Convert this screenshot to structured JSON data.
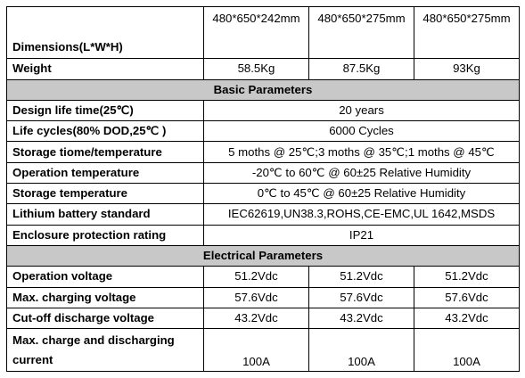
{
  "dimensions": {
    "label": "Dimensions(L*W*H)",
    "values": [
      "480*650*242mm",
      "480*650*275mm",
      "480*650*275mm"
    ]
  },
  "weight": {
    "label": "Weight",
    "values": [
      "58.5Kg",
      "87.5Kg",
      "93Kg"
    ]
  },
  "basic": {
    "header": "Basic Parameters",
    "rows": [
      {
        "label": "Design life time(25℃)",
        "value": "20 years"
      },
      {
        "label": "Life cycles(80% DOD,25℃ )",
        "value": "6000 Cycles"
      },
      {
        "label": "Storage tiome/temperature",
        "value": "5 moths @ 25℃;3 moths @ 35℃;1 moths @ 45℃"
      },
      {
        "label": "Operation temperature",
        "value": "-20℃ to 60℃ @ 60±25 Relative Humidity"
      },
      {
        "label": "Storage temperature",
        "value": "0℃ to 45℃ @ 60±25 Relative Humidity"
      },
      {
        "label": "Lithium battery standard",
        "value": "IEC62619,UN38.3,ROHS,CE-EMC,UL 1642,MSDS"
      },
      {
        "label": "Enclosure protection rating",
        "value": "IP21"
      }
    ]
  },
  "electrical": {
    "header": "Electrical Parameters",
    "rows": [
      {
        "label": "Operation voltage",
        "values": [
          "51.2Vdc",
          "51.2Vdc",
          "51.2Vdc"
        ]
      },
      {
        "label": "Max. charging voltage",
        "values": [
          "57.6Vdc",
          "57.6Vdc",
          "57.6Vdc"
        ]
      },
      {
        "label": "Cut-off discharge voltage",
        "values": [
          "43.2Vdc",
          "43.2Vdc",
          "43.2Vdc"
        ]
      },
      {
        "label": "Max. charge and discharging current",
        "values": [
          "100A",
          "100A",
          "100A"
        ]
      }
    ]
  }
}
